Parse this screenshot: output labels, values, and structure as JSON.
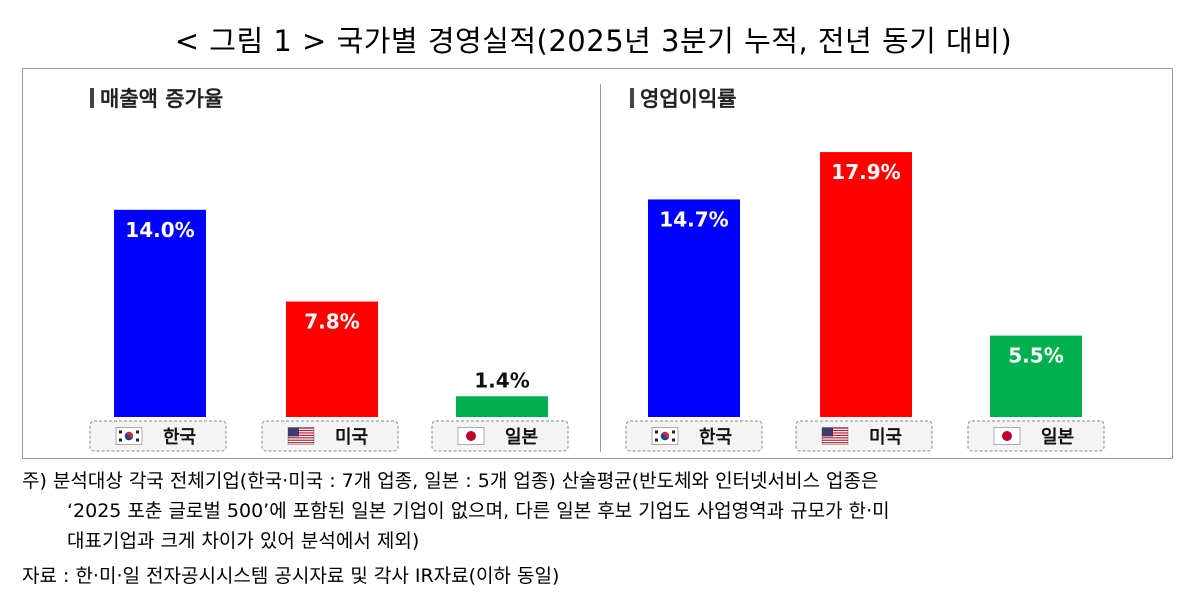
{
  "title": "< 그림 1 > 국가별 경영실적(2025년 3분기 누적, 전년 동기 대비)",
  "colors": {
    "korea": "#0000ff",
    "usa": "#ff0000",
    "japan": "#00b050"
  },
  "chart_data": [
    {
      "type": "bar",
      "title": "매출액 증가율",
      "categories": [
        "한국",
        "미국",
        "일본"
      ],
      "values": [
        14.0,
        7.8,
        1.4
      ],
      "data_labels": [
        "14.0%",
        "7.8%",
        "1.4%"
      ],
      "flags": [
        "korea-flag-icon",
        "usa-flag-icon",
        "japan-flag-icon"
      ],
      "ylim": [
        0,
        18.5
      ],
      "grid": false,
      "legend": "none"
    },
    {
      "type": "bar",
      "title": "영업이익률",
      "categories": [
        "한국",
        "미국",
        "일본"
      ],
      "values": [
        14.7,
        17.9,
        5.5
      ],
      "data_labels": [
        "14.7%",
        "17.9%",
        "5.5%"
      ],
      "flags": [
        "korea-flag-icon",
        "usa-flag-icon",
        "japan-flag-icon"
      ],
      "ylim": [
        0,
        18.5
      ],
      "grid": false,
      "legend": "none"
    }
  ],
  "notes": {
    "line1": "주) 분석대상 각국 전체기업(한국·미국 : 7개 업종, 일본 : 5개 업종) 산술평균(반도체와 인터넷서비스 업종은",
    "line2": "‘2025 포춘 글로벌 500’에 포함된 일본 기업이 없으며, 다른 일본 후보 기업도 사업영역과 규모가 한·미",
    "line3": "대표기업과 크게 차이가 있어 분석에서 제외)",
    "source": "자료 : 한·미·일 전자공시시스템 공시자료 및 각사 IR자료(이하 동일)"
  }
}
